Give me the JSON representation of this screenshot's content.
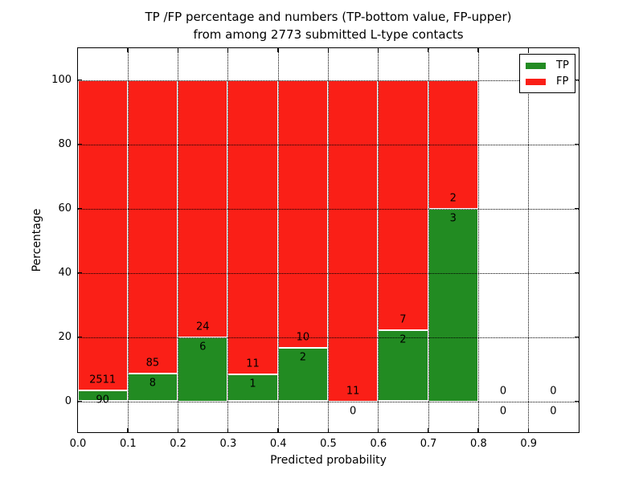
{
  "figure": {
    "title_line1": "TP /FP percentage and numbers (TP-bottom value, FP-upper)",
    "title_line2": "from among 2773 submitted L-type contacts",
    "xlabel": "Predicted probability",
    "ylabel": "Percentage"
  },
  "legend": {
    "entries": [
      {
        "label": "TP",
        "color": "#228b22"
      },
      {
        "label": "FP",
        "color": "#fa1f17"
      }
    ]
  },
  "chart_data": {
    "type": "bar",
    "stacked": true,
    "title": "TP /FP percentage and numbers (TP-bottom value, FP-upper) from among 2773 submitted L-type contacts",
    "xlabel": "Predicted probability",
    "ylabel": "Percentage",
    "xlim": [
      0.0,
      1.0
    ],
    "ylim": [
      -9.5,
      110
    ],
    "grid": true,
    "grid_style": "dotted",
    "legend_position": "upper right",
    "bin_width": 0.1,
    "categories": [
      "0.0-0.1",
      "0.1-0.2",
      "0.2-0.3",
      "0.3-0.4",
      "0.4-0.5",
      "0.5-0.6",
      "0.6-0.7",
      "0.7-0.8",
      "0.8-0.9",
      "0.9-1.0"
    ],
    "xtick_labels": [
      "0.0",
      "0.1",
      "0.2",
      "0.3",
      "0.4",
      "0.5",
      "0.6",
      "0.7",
      "0.8",
      "0.9"
    ],
    "ytick_values": [
      0,
      20,
      40,
      60,
      80,
      100
    ],
    "series": [
      {
        "name": "TP",
        "color": "#228b22",
        "counts": [
          90,
          8,
          6,
          1,
          2,
          0,
          2,
          3,
          0,
          0
        ],
        "percent": [
          3.46,
          8.6,
          20.0,
          8.33,
          16.67,
          0.0,
          22.22,
          60.0,
          null,
          null
        ]
      },
      {
        "name": "FP",
        "color": "#fa1f17",
        "counts": [
          2511,
          85,
          24,
          11,
          10,
          11,
          7,
          2,
          0,
          0
        ],
        "percent": [
          96.54,
          91.4,
          80.0,
          91.67,
          83.33,
          100.0,
          77.78,
          40.0,
          null,
          null
        ]
      }
    ],
    "total_contacts": 2773
  }
}
